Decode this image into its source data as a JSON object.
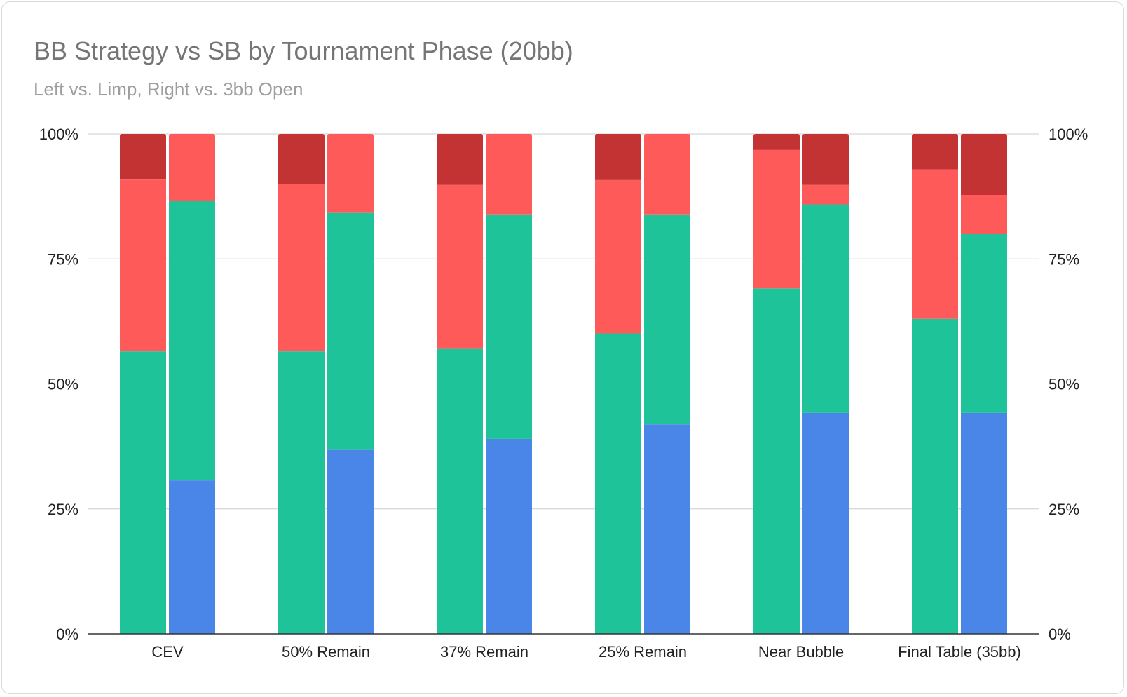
{
  "chart_data": {
    "type": "bar",
    "stacked": true,
    "title": "BB Strategy vs SB by Tournament Phase (20bb)",
    "subtitle": "Left vs. Limp, Right vs. 3bb Open",
    "categories": [
      "CEV",
      "50% Remain",
      "37% Remain",
      "25% Remain",
      "Near Bubble",
      "Final Table (35bb)"
    ],
    "ylim": [
      0,
      100
    ],
    "y_ticks": [
      "0%",
      "25%",
      "50%",
      "75%",
      "100%"
    ],
    "y2_ticks": [
      "0%",
      "25%",
      "50%",
      "75%",
      "100%"
    ],
    "grid": true,
    "colors": {
      "blue": "#4a86e8",
      "green": "#1fc39a",
      "light_red": "#ff5a5a",
      "dark_red": "#c43333"
    },
    "groups": [
      {
        "category": "CEV",
        "left": [
          0,
          56.5,
          34.5,
          9
        ],
        "right": [
          30.7,
          55.9,
          13.4,
          0
        ]
      },
      {
        "category": "50% Remain",
        "left": [
          0,
          56.5,
          33.5,
          10
        ],
        "right": [
          36.8,
          47.4,
          15.8,
          0
        ]
      },
      {
        "category": "37% Remain",
        "left": [
          0,
          57,
          32.8,
          10.2
        ],
        "right": [
          39,
          44.9,
          16.1,
          0
        ]
      },
      {
        "category": "25% Remain",
        "left": [
          0,
          60.1,
          30.8,
          9.1
        ],
        "right": [
          41.9,
          42,
          16.1,
          0
        ]
      },
      {
        "category": "Near Bubble",
        "left": [
          0,
          69.1,
          27.7,
          3.2
        ],
        "right": [
          44.2,
          41.7,
          3.9,
          10.2
        ]
      },
      {
        "category": "Final Table (35bb)",
        "left": [
          0,
          63,
          29.9,
          7.1
        ],
        "right": [
          44.2,
          35.8,
          7.8,
          12.2
        ]
      }
    ]
  }
}
